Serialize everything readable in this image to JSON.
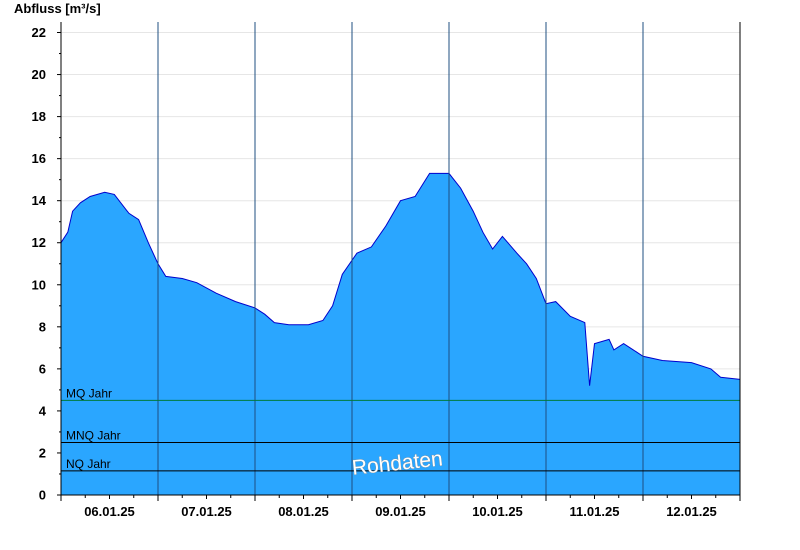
{
  "chart_data": {
    "type": "area",
    "ylabel": "Abfluss [m³/s]",
    "ylim": [
      0,
      22.5
    ],
    "y_ticks": [
      0,
      2,
      4,
      6,
      8,
      10,
      12,
      14,
      16,
      18,
      20,
      22
    ],
    "x_range_days": [
      5.5,
      12.5
    ],
    "day_ticks": [
      {
        "day": 6,
        "label": "06.01.25"
      },
      {
        "day": 7,
        "label": "07.01.25"
      },
      {
        "day": 8,
        "label": "08.01.25"
      },
      {
        "day": 9,
        "label": "09.01.25"
      },
      {
        "day": 10,
        "label": "10.01.25"
      },
      {
        "day": 11,
        "label": "11.01.25"
      },
      {
        "day": 12,
        "label": "12.01.25"
      }
    ],
    "grid": "horizontal",
    "series": [
      {
        "color": "#2aa6ff",
        "line_color": "#0000cc",
        "points": [
          [
            5.5,
            12.0
          ],
          [
            5.57,
            12.5
          ],
          [
            5.62,
            13.5
          ],
          [
            5.7,
            13.9
          ],
          [
            5.8,
            14.2
          ],
          [
            5.95,
            14.4
          ],
          [
            6.05,
            14.3
          ],
          [
            6.2,
            13.4
          ],
          [
            6.3,
            13.1
          ],
          [
            6.4,
            12.0
          ],
          [
            6.5,
            11.0
          ],
          [
            6.58,
            10.4
          ],
          [
            6.75,
            10.3
          ],
          [
            6.9,
            10.1
          ],
          [
            7.1,
            9.6
          ],
          [
            7.3,
            9.2
          ],
          [
            7.5,
            8.9
          ],
          [
            7.6,
            8.6
          ],
          [
            7.7,
            8.2
          ],
          [
            7.85,
            8.1
          ],
          [
            8.05,
            8.1
          ],
          [
            8.2,
            8.3
          ],
          [
            8.3,
            9.0
          ],
          [
            8.4,
            10.5
          ],
          [
            8.55,
            11.5
          ],
          [
            8.7,
            11.8
          ],
          [
            8.85,
            12.8
          ],
          [
            9.0,
            14.0
          ],
          [
            9.15,
            14.2
          ],
          [
            9.3,
            15.3
          ],
          [
            9.5,
            15.3
          ],
          [
            9.62,
            14.6
          ],
          [
            9.75,
            13.5
          ],
          [
            9.85,
            12.5
          ],
          [
            9.95,
            11.7
          ],
          [
            10.05,
            12.3
          ],
          [
            10.2,
            11.5
          ],
          [
            10.3,
            11.0
          ],
          [
            10.4,
            10.3
          ],
          [
            10.5,
            9.1
          ],
          [
            10.6,
            9.2
          ],
          [
            10.75,
            8.5
          ],
          [
            10.9,
            8.2
          ],
          [
            10.95,
            5.2
          ],
          [
            11.0,
            7.2
          ],
          [
            11.15,
            7.4
          ],
          [
            11.2,
            6.9
          ],
          [
            11.3,
            7.2
          ],
          [
            11.4,
            6.9
          ],
          [
            11.5,
            6.6
          ],
          [
            11.7,
            6.4
          ],
          [
            12.0,
            6.3
          ],
          [
            12.2,
            6.0
          ],
          [
            12.3,
            5.6
          ],
          [
            12.5,
            5.5
          ]
        ]
      }
    ],
    "reference_lines": [
      {
        "label": "MQ Jahr",
        "value": 4.5,
        "color": "#007a3d"
      },
      {
        "label": "MNQ Jahr",
        "value": 2.5,
        "color": "#000000"
      },
      {
        "label": "NQ Jahr",
        "value": 1.15,
        "color": "#000000"
      }
    ],
    "watermark": "Rohdaten"
  }
}
